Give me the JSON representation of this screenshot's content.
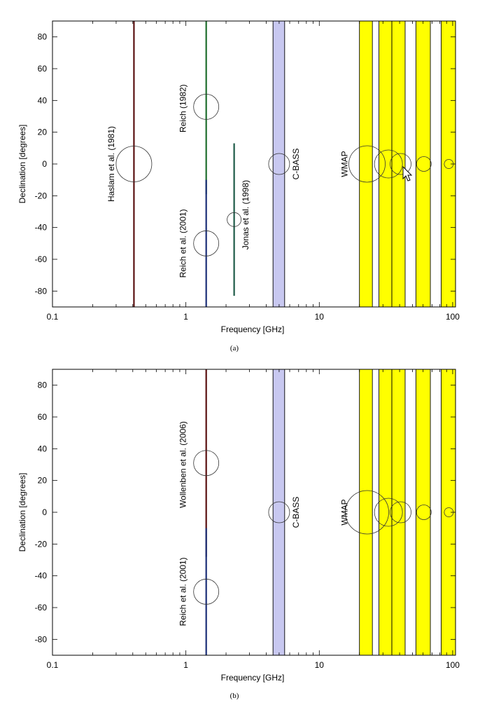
{
  "figure": {
    "panels": [
      {
        "caption": "(a)"
      },
      {
        "caption": "(b)"
      }
    ]
  },
  "chart_data": [
    {
      "type": "scatter",
      "x_scale": "log",
      "xlim": [
        0.1,
        105
      ],
      "ylim": [
        -90,
        90
      ],
      "xlabel": "Frequency [GHz]",
      "ylabel": "Declination [degrees]",
      "xticks": [
        0.1,
        1,
        10,
        100
      ],
      "xtick_labels": [
        "0.1",
        "1",
        "10",
        "100"
      ],
      "yticks": [
        80,
        60,
        40,
        20,
        0,
        -20,
        -40,
        -60,
        -80
      ],
      "ytick_labels": [
        "80",
        "60",
        "40",
        "20",
        "0",
        "-20",
        "-40",
        "-60",
        "-80"
      ],
      "bands": [
        {
          "name": "C-BASS",
          "x0": 4.5,
          "x1": 5.5,
          "color": "#c8c8f0"
        },
        {
          "name": "WMAP",
          "x0": 20,
          "x1": 25,
          "color": "#ffff00"
        },
        {
          "name": "WMAP",
          "x0": 28,
          "x1": 35,
          "color": "#ffff00"
        },
        {
          "name": "WMAP",
          "x0": 35,
          "x1": 44,
          "color": "#ffff00"
        },
        {
          "name": "WMAP",
          "x0": 53,
          "x1": 68,
          "color": "#ffff00"
        },
        {
          "name": "WMAP",
          "x0": 82,
          "x1": 105,
          "color": "#ffff00"
        }
      ],
      "surveys": [
        {
          "freq": 0.408,
          "dec_min": -90,
          "dec_max": 90,
          "color": "#5a1010"
        },
        {
          "freq": 1.42,
          "dec_min": -19,
          "dec_max": 90,
          "color": "#1f6e2e"
        },
        {
          "freq": 1.42,
          "dec_min": -90,
          "dec_max": -10,
          "color": "#1b2f77"
        },
        {
          "freq": 2.3,
          "dec_min": -83,
          "dec_max": 13,
          "color": "#1f5b48"
        }
      ],
      "beams": [
        {
          "freq": 0.408,
          "dec": 0,
          "size": 51
        },
        {
          "freq": 1.42,
          "dec": 36,
          "size": 36
        },
        {
          "freq": 1.42,
          "dec": -50,
          "size": 36
        },
        {
          "freq": 2.3,
          "dec": -35,
          "size": 20
        },
        {
          "freq": 5,
          "dec": 0,
          "size": 30
        },
        {
          "freq": 22.8,
          "dec": 0,
          "size": 52
        },
        {
          "freq": 33,
          "dec": 0,
          "size": 40
        },
        {
          "freq": 40.7,
          "dec": 0,
          "size": 30
        },
        {
          "freq": 60.8,
          "dec": 0,
          "size": 21
        },
        {
          "freq": 93.5,
          "dec": 0,
          "size": 13
        }
      ],
      "annotations": [
        {
          "text": "Haslam et al. (1981)",
          "freq": 0.29,
          "dec": 0
        },
        {
          "text": "Reich (1982)",
          "freq": 1.0,
          "dec": 35
        },
        {
          "text": "Reich et al. (2001)",
          "freq": 1.0,
          "dec": -50
        },
        {
          "text": "Jonas et al. (1998)",
          "freq": 2.95,
          "dec": -32
        },
        {
          "text": "C-BASS",
          "freq": 7.0,
          "dec": 0
        },
        {
          "text": "WMAP",
          "freq": 16.2,
          "dec": 0
        }
      ]
    },
    {
      "type": "scatter",
      "x_scale": "log",
      "xlim": [
        0.1,
        105
      ],
      "ylim": [
        -90,
        90
      ],
      "xlabel": "Frequency [GHz]",
      "ylabel": "Declination [degrees]",
      "xticks": [
        0.1,
        1,
        10,
        100
      ],
      "xtick_labels": [
        "0.1",
        "1",
        "10",
        "100"
      ],
      "yticks": [
        80,
        60,
        40,
        20,
        0,
        -20,
        -40,
        -60,
        -80
      ],
      "ytick_labels": [
        "80",
        "60",
        "40",
        "20",
        "0",
        "-20",
        "-40",
        "-60",
        "-80"
      ],
      "bands": [
        {
          "name": "C-BASS",
          "x0": 4.5,
          "x1": 5.5,
          "color": "#c8c8f0"
        },
        {
          "name": "WMAP",
          "x0": 20,
          "x1": 25,
          "color": "#ffff00"
        },
        {
          "name": "WMAP",
          "x0": 28,
          "x1": 35,
          "color": "#ffff00"
        },
        {
          "name": "WMAP",
          "x0": 35,
          "x1": 44,
          "color": "#ffff00"
        },
        {
          "name": "WMAP",
          "x0": 53,
          "x1": 68,
          "color": "#ffff00"
        },
        {
          "name": "WMAP",
          "x0": 82,
          "x1": 105,
          "color": "#ffff00"
        }
      ],
      "surveys": [
        {
          "freq": 1.42,
          "dec_min": -28,
          "dec_max": 90,
          "color": "#5a1010"
        },
        {
          "freq": 1.42,
          "dec_min": -90,
          "dec_max": -10,
          "color": "#1b2f77"
        }
      ],
      "beams": [
        {
          "freq": 1.42,
          "dec": 31,
          "size": 36
        },
        {
          "freq": 1.42,
          "dec": -50,
          "size": 36
        },
        {
          "freq": 5,
          "dec": 0,
          "size": 30
        },
        {
          "freq": 22.8,
          "dec": 0,
          "size": 62
        },
        {
          "freq": 33,
          "dec": 0,
          "size": 40
        },
        {
          "freq": 40.7,
          "dec": 0,
          "size": 30
        },
        {
          "freq": 60.8,
          "dec": 0,
          "size": 21
        },
        {
          "freq": 93.5,
          "dec": 0,
          "size": 13
        }
      ],
      "annotations": [
        {
          "text": "Wollenben et al. (2006)",
          "freq": 1.0,
          "dec": 30
        },
        {
          "text": "Reich et al. (2001)",
          "freq": 1.0,
          "dec": -50
        },
        {
          "text": "C-BASS",
          "freq": 7.0,
          "dec": 0
        },
        {
          "text": "WMAP",
          "freq": 16.2,
          "dec": 0
        }
      ]
    }
  ]
}
